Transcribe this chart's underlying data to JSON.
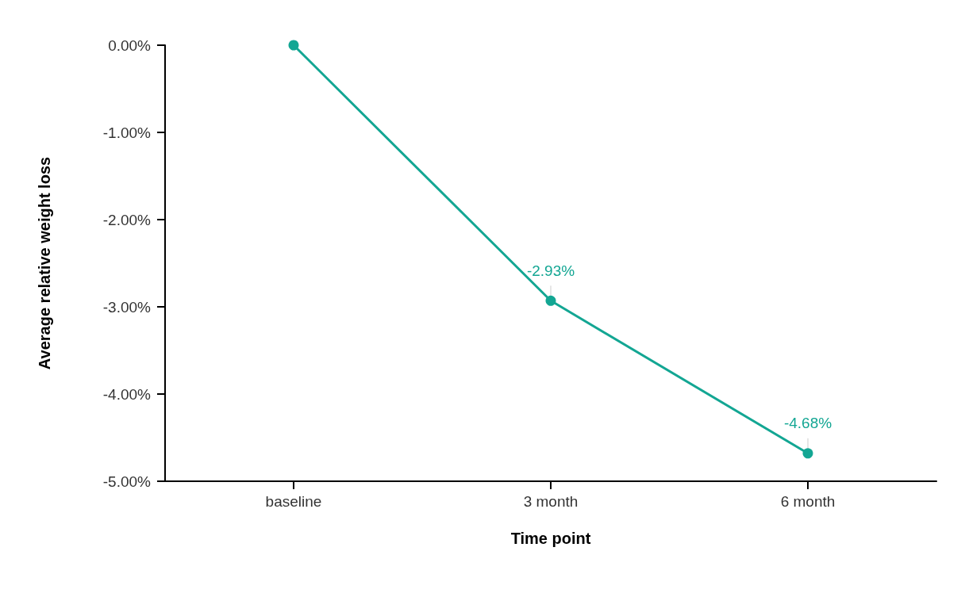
{
  "chart_data": {
    "type": "line",
    "xlabel": "Time point",
    "ylabel": "Average relative weight loss",
    "categories": [
      "baseline",
      "3 month",
      "6 month"
    ],
    "series": [
      {
        "color": "#13a693",
        "values": [
          0,
          -2.93,
          -4.68
        ],
        "value_labels": [
          null,
          "-2.93%",
          "-4.68%"
        ]
      }
    ],
    "ylim": [
      -5,
      0
    ],
    "yticks": [
      {
        "value": -5,
        "label": "-5.00%"
      },
      {
        "value": -4,
        "label": "-4.00%"
      },
      {
        "value": -3,
        "label": "-3.00%"
      },
      {
        "value": -2,
        "label": "-2.00%"
      },
      {
        "value": -1,
        "label": "-1.00%"
      },
      {
        "value": 0,
        "label": "0.00%"
      }
    ],
    "grid": false,
    "marker": "circle",
    "line_style": "solid"
  }
}
